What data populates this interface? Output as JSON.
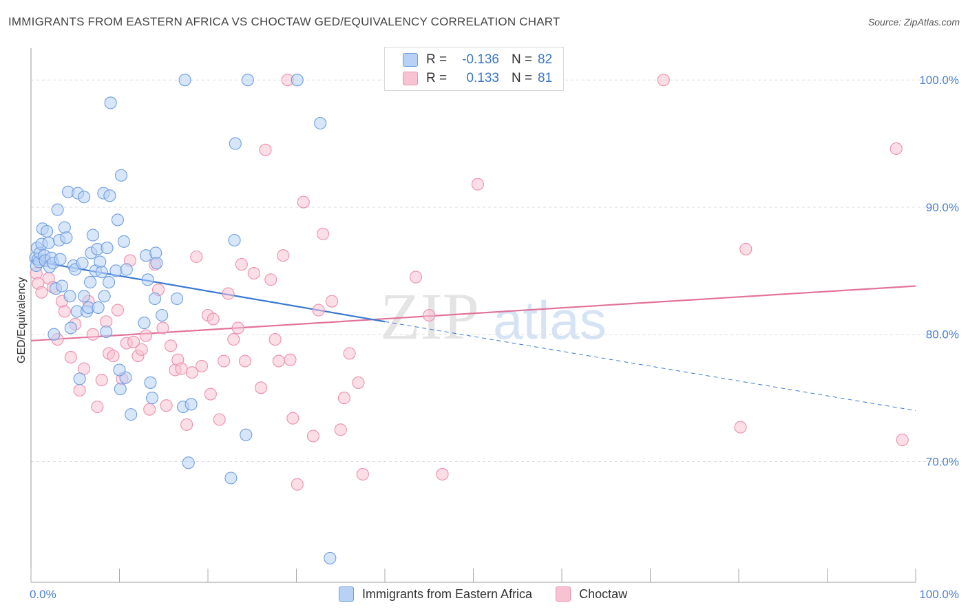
{
  "title": "IMMIGRANTS FROM EASTERN AFRICA VS CHOCTAW GED/EQUIVALENCY CORRELATION CHART",
  "source": "Source: ZipAtlas.com",
  "watermark_zip": "ZIP",
  "watermark_atlas": "atlas",
  "legend": {
    "row1": {
      "r_label": "R =",
      "r_value": "-0.136",
      "n_label": "N =",
      "n_value": "82"
    },
    "row2": {
      "r_label": "R =",
      "r_value": "0.133",
      "n_label": "N =",
      "n_value": "81"
    }
  },
  "bottom_legend": {
    "series1": "Immigrants from Eastern Africa",
    "series2": "Choctaw"
  },
  "colors": {
    "blue_fill": "#b8d2f5",
    "blue_stroke": "#6d9de0",
    "blue_line": "#3a78d4",
    "pink_fill": "#f7c3d2",
    "pink_stroke": "#ec8fae",
    "pink_line": "#e2729a",
    "tick_text": "#4a7fd0",
    "grid": "#dddddd"
  },
  "chart_data": {
    "type": "scatter",
    "ylabel": "GED/Equivalency",
    "xlabel": "",
    "xlim": [
      0,
      100
    ],
    "ylim": [
      60.5,
      102.5
    ],
    "y_ticks": [
      {
        "value": 100,
        "label": "100.0%"
      },
      {
        "value": 90,
        "label": "90.0%"
      },
      {
        "value": 80,
        "label": "80.0%"
      },
      {
        "value": 70,
        "label": "70.0%"
      }
    ],
    "x_tick_labels": {
      "left": "0.0%",
      "right": "100.0%"
    },
    "grid": "horizontal dashed",
    "series": [
      {
        "name": "Immigrants from Eastern Africa",
        "color": "#6d9de0",
        "trend": {
          "x0": 0,
          "y0": 85.8,
          "x1": 40,
          "y1": 81.0,
          "dashed_to_x": 100,
          "dashed_to_y": 74.0
        },
        "points": [
          [
            0.5,
            86.0
          ],
          [
            0.6,
            85.4
          ],
          [
            0.7,
            86.8
          ],
          [
            0.8,
            85.9
          ],
          [
            0.9,
            85.7
          ],
          [
            1.0,
            86.4
          ],
          [
            1.2,
            87.1
          ],
          [
            1.3,
            88.3
          ],
          [
            1.5,
            86.2
          ],
          [
            1.6,
            85.8
          ],
          [
            1.8,
            88.1
          ],
          [
            2.0,
            87.2
          ],
          [
            2.1,
            85.3
          ],
          [
            2.3,
            86.0
          ],
          [
            2.5,
            85.6
          ],
          [
            2.8,
            83.6
          ],
          [
            3.0,
            89.8
          ],
          [
            3.2,
            87.4
          ],
          [
            3.3,
            85.9
          ],
          [
            3.5,
            83.8
          ],
          [
            3.8,
            88.4
          ],
          [
            4.0,
            87.6
          ],
          [
            4.2,
            91.2
          ],
          [
            4.4,
            83.0
          ],
          [
            4.5,
            80.5
          ],
          [
            4.8,
            85.4
          ],
          [
            5.0,
            85.1
          ],
          [
            5.2,
            81.8
          ],
          [
            5.3,
            91.1
          ],
          [
            5.5,
            76.5
          ],
          [
            5.8,
            85.6
          ],
          [
            6.0,
            83.0
          ],
          [
            6.0,
            90.8
          ],
          [
            6.3,
            81.8
          ],
          [
            6.5,
            82.1
          ],
          [
            6.7,
            84.1
          ],
          [
            6.8,
            86.4
          ],
          [
            7.0,
            87.8
          ],
          [
            7.3,
            85.0
          ],
          [
            7.5,
            86.7
          ],
          [
            7.6,
            82.1
          ],
          [
            7.8,
            85.7
          ],
          [
            8.0,
            84.9
          ],
          [
            8.2,
            91.1
          ],
          [
            8.3,
            83.0
          ],
          [
            8.5,
            80.2
          ],
          [
            8.6,
            86.8
          ],
          [
            8.8,
            84.1
          ],
          [
            8.9,
            90.9
          ],
          [
            9.0,
            98.2
          ],
          [
            9.6,
            85.0
          ],
          [
            9.8,
            89.0
          ],
          [
            10.2,
            92.5
          ],
          [
            10.1,
            75.7
          ],
          [
            10.5,
            87.3
          ],
          [
            10.7,
            76.6
          ],
          [
            10.8,
            85.1
          ],
          [
            11.3,
            73.7
          ],
          [
            12.8,
            80.9
          ],
          [
            13.0,
            86.2
          ],
          [
            13.2,
            84.3
          ],
          [
            13.5,
            76.2
          ],
          [
            13.7,
            75.0
          ],
          [
            14.0,
            82.8
          ],
          [
            14.1,
            86.4
          ],
          [
            14.8,
            81.5
          ],
          [
            16.5,
            82.8
          ],
          [
            17.2,
            74.3
          ],
          [
            17.4,
            100.0
          ],
          [
            17.8,
            69.9
          ],
          [
            18.1,
            74.5
          ],
          [
            23.0,
            87.4
          ],
          [
            23.1,
            95.0
          ],
          [
            22.6,
            68.7
          ],
          [
            24.5,
            100.0
          ],
          [
            24.3,
            72.1
          ],
          [
            30.1,
            100.0
          ],
          [
            32.7,
            96.6
          ],
          [
            33.8,
            62.4
          ],
          [
            10.0,
            77.2
          ],
          [
            2.6,
            80.0
          ],
          [
            14.2,
            85.6
          ]
        ]
      },
      {
        "name": "Choctaw",
        "color": "#ec8fae",
        "trend": {
          "x0": 0,
          "y0": 79.5,
          "x1": 100,
          "y1": 83.8
        },
        "points": [
          [
            0.6,
            84.8
          ],
          [
            0.8,
            84.0
          ],
          [
            1.2,
            83.3
          ],
          [
            1.5,
            85.8
          ],
          [
            2.0,
            84.4
          ],
          [
            2.5,
            83.7
          ],
          [
            3.0,
            79.6
          ],
          [
            3.5,
            82.6
          ],
          [
            3.8,
            81.8
          ],
          [
            4.5,
            78.2
          ],
          [
            5.0,
            80.8
          ],
          [
            5.5,
            75.6
          ],
          [
            6.0,
            77.3
          ],
          [
            6.5,
            82.6
          ],
          [
            7.0,
            80.0
          ],
          [
            7.5,
            74.3
          ],
          [
            8.0,
            76.4
          ],
          [
            8.5,
            81.0
          ],
          [
            8.8,
            78.5
          ],
          [
            9.3,
            78.3
          ],
          [
            9.8,
            81.9
          ],
          [
            10.3,
            76.5
          ],
          [
            10.8,
            79.3
          ],
          [
            11.2,
            85.8
          ],
          [
            11.6,
            79.4
          ],
          [
            12.1,
            78.3
          ],
          [
            12.5,
            78.8
          ],
          [
            13.0,
            79.9
          ],
          [
            13.4,
            74.1
          ],
          [
            14.0,
            85.5
          ],
          [
            14.4,
            83.5
          ],
          [
            14.9,
            80.5
          ],
          [
            15.3,
            74.4
          ],
          [
            15.8,
            79.1
          ],
          [
            16.3,
            77.2
          ],
          [
            16.6,
            78.0
          ],
          [
            17.0,
            77.3
          ],
          [
            17.6,
            72.9
          ],
          [
            18.2,
            77.0
          ],
          [
            18.7,
            86.1
          ],
          [
            19.3,
            77.5
          ],
          [
            20.0,
            81.5
          ],
          [
            20.3,
            75.3
          ],
          [
            20.6,
            81.2
          ],
          [
            21.3,
            73.3
          ],
          [
            21.8,
            77.9
          ],
          [
            22.3,
            83.2
          ],
          [
            22.9,
            79.6
          ],
          [
            23.4,
            80.5
          ],
          [
            23.8,
            85.5
          ],
          [
            24.2,
            77.9
          ],
          [
            25.2,
            84.8
          ],
          [
            26.0,
            75.8
          ],
          [
            26.5,
            94.5
          ],
          [
            27.1,
            84.3
          ],
          [
            27.6,
            79.6
          ],
          [
            28.0,
            77.9
          ],
          [
            28.5,
            86.2
          ],
          [
            29.3,
            78.0
          ],
          [
            29.6,
            73.4
          ],
          [
            30.1,
            68.2
          ],
          [
            30.8,
            90.4
          ],
          [
            31.9,
            72.0
          ],
          [
            32.5,
            81.9
          ],
          [
            33.0,
            87.9
          ],
          [
            34.0,
            82.6
          ],
          [
            35.0,
            72.5
          ],
          [
            35.4,
            75.0
          ],
          [
            36.0,
            78.5
          ],
          [
            37.0,
            76.2
          ],
          [
            37.5,
            69.0
          ],
          [
            43.5,
            84.5
          ],
          [
            45.0,
            81.5
          ],
          [
            46.5,
            69.0
          ],
          [
            50.5,
            91.8
          ],
          [
            71.5,
            100.0
          ],
          [
            80.2,
            72.7
          ],
          [
            80.8,
            86.7
          ],
          [
            97.8,
            94.6
          ],
          [
            98.5,
            71.7
          ],
          [
            29.0,
            100.0
          ]
        ]
      }
    ]
  }
}
